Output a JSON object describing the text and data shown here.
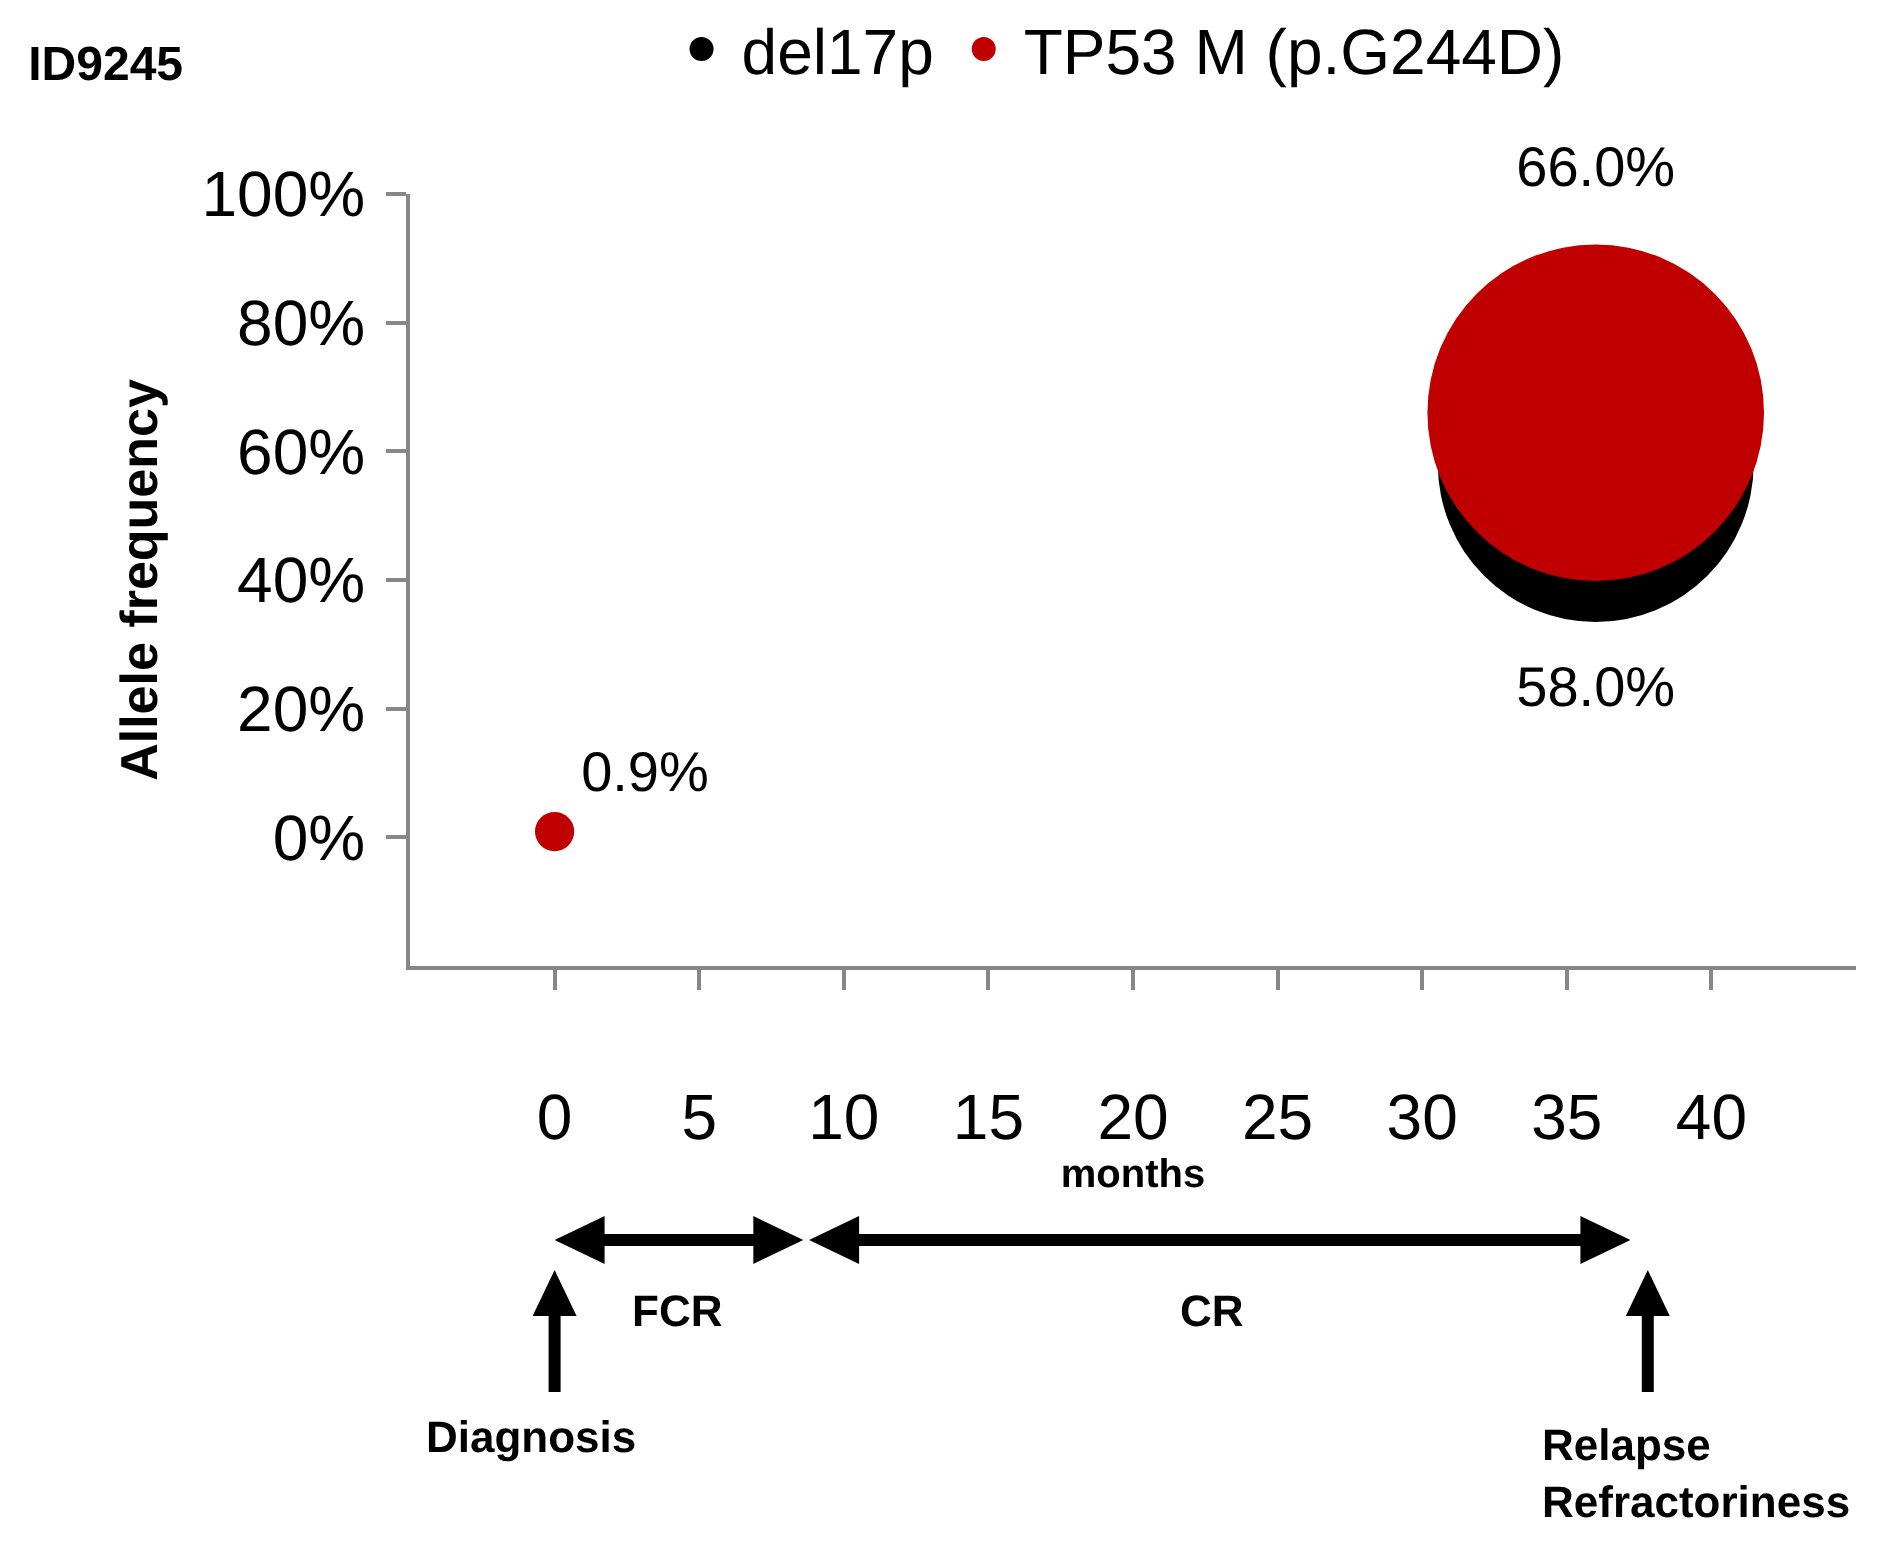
{
  "chart_data": {
    "type": "bubble",
    "title": "ID9245",
    "xlabel": "months",
    "ylabel": "Allele frequency",
    "series": [
      {
        "name": "del17p",
        "color": "#000000",
        "values": [
          null,
          58
        ],
        "sizes": [
          null,
          0.88
        ],
        "value_labels": [
          null,
          "58.0%"
        ]
      },
      {
        "name": "TP53 M (p.G244D)",
        "color": "#c00000",
        "values": [
          0.9,
          66
        ],
        "sizes": [
          0.0136,
          1
        ],
        "value_labels": [
          "0.9%",
          "66.0%"
        ]
      }
    ],
    "x": [
      0,
      36
    ],
    "xlim": [
      -5,
      45
    ],
    "xticks": [
      0,
      5,
      10,
      15,
      20,
      25,
      30,
      35,
      40
    ],
    "ylim": [
      -20,
      100
    ],
    "yticks": [
      {
        "value": 0,
        "label": "0%"
      },
      {
        "value": 20,
        "label": "20%"
      },
      {
        "value": 40,
        "label": "40%"
      },
      {
        "value": 60,
        "label": "60%"
      },
      {
        "value": 80,
        "label": "80%"
      },
      {
        "value": 100,
        "label": "100%"
      }
    ],
    "annotations": [
      "FCR",
      "CR",
      "Diagnosis",
      "Relapse\nRefractoriness"
    ],
    "legend": "top",
    "grid": false,
    "marker": "circle"
  }
}
